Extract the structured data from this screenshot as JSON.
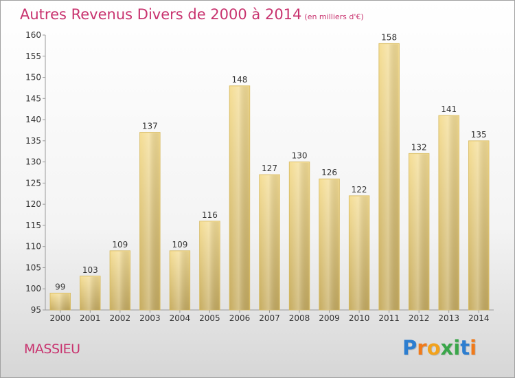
{
  "chart_data": {
    "type": "bar",
    "title": "Autres Revenus Divers de 2000 à 2014",
    "subtitle": "(en milliers d'€)",
    "categories": [
      "2000",
      "2001",
      "2002",
      "2003",
      "2004",
      "2005",
      "2006",
      "2007",
      "2008",
      "2009",
      "2010",
      "2011",
      "2012",
      "2013",
      "2014"
    ],
    "values": [
      99,
      103,
      109,
      137,
      109,
      116,
      148,
      127,
      130,
      126,
      122,
      158,
      132,
      141,
      135
    ],
    "ylim": [
      95,
      160
    ],
    "yticks": [
      95,
      100,
      105,
      110,
      115,
      120,
      125,
      130,
      135,
      140,
      145,
      150,
      155,
      160
    ],
    "grid": false,
    "bar_color": "#e9cc7c",
    "text_color": "#c8326e"
  },
  "footer": {
    "commune": "MASSIEU",
    "brand_letters": [
      {
        "ch": "P",
        "color": "#2d7ed0"
      },
      {
        "ch": "r",
        "color": "#f07a1a"
      },
      {
        "ch": "o",
        "color": "#f2a21c"
      },
      {
        "ch": "x",
        "color": "#3aa64a"
      },
      {
        "ch": "i",
        "color": "#3aa64a"
      },
      {
        "ch": "t",
        "color": "#2d7ed0"
      },
      {
        "ch": "i",
        "color": "#f07a1a"
      }
    ]
  }
}
